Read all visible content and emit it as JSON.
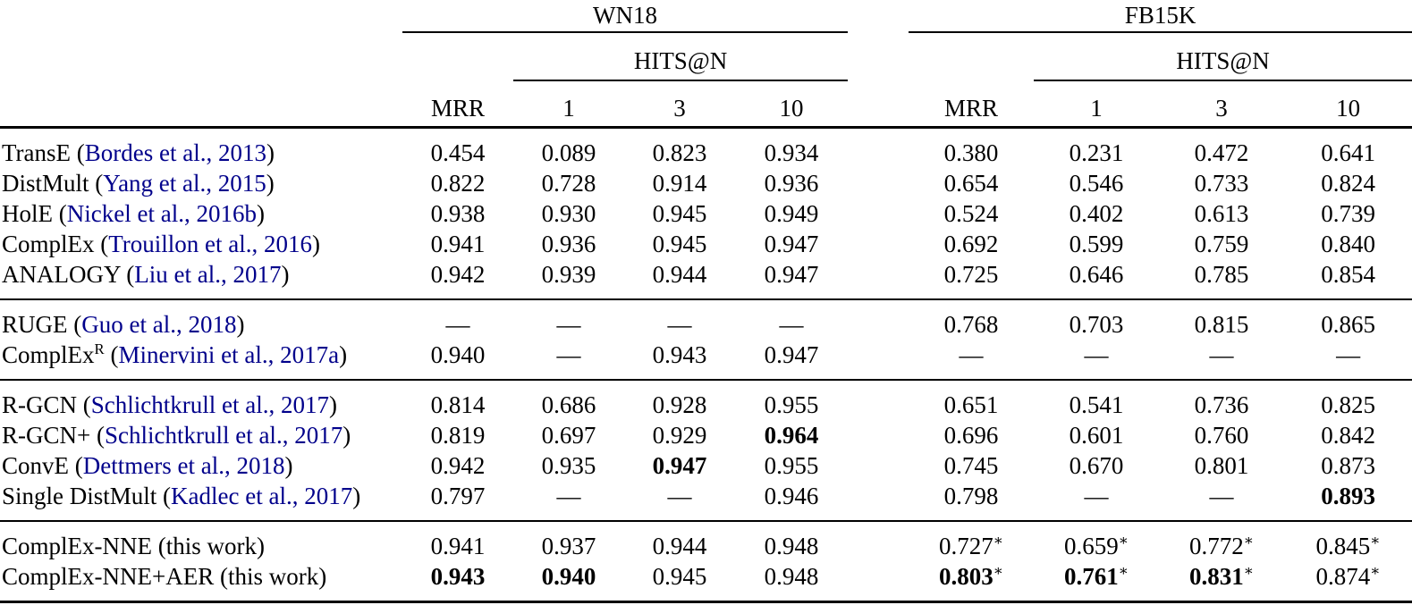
{
  "table": {
    "link_color": "#00008b",
    "dash_symbol": "—",
    "star_symbol": "∗",
    "header": {
      "group_labels": [
        "WN18",
        "FB15K"
      ],
      "hits_label": "HITS@N",
      "metric_labels": [
        "MRR",
        "1",
        "3",
        "10"
      ]
    },
    "groups": [
      {
        "rows": [
          {
            "method": "TransE",
            "sup": "",
            "cite": "Bordes et al., 2013",
            "cite_is_link": true,
            "cells": [
              {
                "v": "0.454"
              },
              {
                "v": "0.089"
              },
              {
                "v": "0.823"
              },
              {
                "v": "0.934"
              },
              {
                "v": "0.380"
              },
              {
                "v": "0.231"
              },
              {
                "v": "0.472"
              },
              {
                "v": "0.641"
              }
            ]
          },
          {
            "method": "DistMult",
            "sup": "",
            "cite": "Yang et al., 2015",
            "cite_is_link": true,
            "cells": [
              {
                "v": "0.822"
              },
              {
                "v": "0.728"
              },
              {
                "v": "0.914"
              },
              {
                "v": "0.936"
              },
              {
                "v": "0.654"
              },
              {
                "v": "0.546"
              },
              {
                "v": "0.733"
              },
              {
                "v": "0.824"
              }
            ]
          },
          {
            "method": "HolE",
            "sup": "",
            "cite": "Nickel et al., 2016b",
            "cite_is_link": true,
            "cells": [
              {
                "v": "0.938"
              },
              {
                "v": "0.930"
              },
              {
                "v": "0.945"
              },
              {
                "v": "0.949"
              },
              {
                "v": "0.524"
              },
              {
                "v": "0.402"
              },
              {
                "v": "0.613"
              },
              {
                "v": "0.739"
              }
            ]
          },
          {
            "method": "ComplEx",
            "sup": "",
            "cite": "Trouillon et al., 2016",
            "cite_is_link": true,
            "cells": [
              {
                "v": "0.941"
              },
              {
                "v": "0.936"
              },
              {
                "v": "0.945"
              },
              {
                "v": "0.947"
              },
              {
                "v": "0.692"
              },
              {
                "v": "0.599"
              },
              {
                "v": "0.759"
              },
              {
                "v": "0.840"
              }
            ]
          },
          {
            "method": "ANALOGY",
            "sup": "",
            "cite": "Liu et al., 2017",
            "cite_is_link": true,
            "cells": [
              {
                "v": "0.942"
              },
              {
                "v": "0.939"
              },
              {
                "v": "0.944"
              },
              {
                "v": "0.947"
              },
              {
                "v": "0.725"
              },
              {
                "v": "0.646"
              },
              {
                "v": "0.785"
              },
              {
                "v": "0.854"
              }
            ]
          }
        ]
      },
      {
        "rows": [
          {
            "method": "RUGE",
            "sup": "",
            "cite": "Guo et al., 2018",
            "cite_is_link": true,
            "cells": [
              {
                "v": "—",
                "dash": true
              },
              {
                "v": "—",
                "dash": true
              },
              {
                "v": "—",
                "dash": true
              },
              {
                "v": "—",
                "dash": true
              },
              {
                "v": "0.768"
              },
              {
                "v": "0.703"
              },
              {
                "v": "0.815"
              },
              {
                "v": "0.865"
              }
            ]
          },
          {
            "method": "ComplEx",
            "sup": "R",
            "cite": "Minervini et al., 2017a",
            "cite_is_link": true,
            "cells": [
              {
                "v": "0.940"
              },
              {
                "v": "—",
                "dash": true
              },
              {
                "v": "0.943"
              },
              {
                "v": "0.947"
              },
              {
                "v": "—",
                "dash": true
              },
              {
                "v": "—",
                "dash": true
              },
              {
                "v": "—",
                "dash": true
              },
              {
                "v": "—",
                "dash": true
              }
            ]
          }
        ]
      },
      {
        "rows": [
          {
            "method": "R-GCN",
            "sup": "",
            "cite": "Schlichtkrull et al., 2017",
            "cite_is_link": true,
            "cells": [
              {
                "v": "0.814"
              },
              {
                "v": "0.686"
              },
              {
                "v": "0.928"
              },
              {
                "v": "0.955"
              },
              {
                "v": "0.651"
              },
              {
                "v": "0.541"
              },
              {
                "v": "0.736"
              },
              {
                "v": "0.825"
              }
            ]
          },
          {
            "method": "R-GCN+",
            "sup": "",
            "cite": "Schlichtkrull et al., 2017",
            "cite_is_link": true,
            "cells": [
              {
                "v": "0.819"
              },
              {
                "v": "0.697"
              },
              {
                "v": "0.929"
              },
              {
                "v": "0.964",
                "bold": true
              },
              {
                "v": "0.696"
              },
              {
                "v": "0.601"
              },
              {
                "v": "0.760"
              },
              {
                "v": "0.842"
              }
            ]
          },
          {
            "method": "ConvE",
            "sup": "",
            "cite": "Dettmers et al., 2018",
            "cite_is_link": true,
            "cells": [
              {
                "v": "0.942"
              },
              {
                "v": "0.935"
              },
              {
                "v": "0.947",
                "bold": true
              },
              {
                "v": "0.955"
              },
              {
                "v": "0.745"
              },
              {
                "v": "0.670"
              },
              {
                "v": "0.801"
              },
              {
                "v": "0.873"
              }
            ]
          },
          {
            "method": "Single DistMult",
            "sup": "",
            "cite": "Kadlec et al., 2017",
            "cite_is_link": true,
            "cells": [
              {
                "v": "0.797"
              },
              {
                "v": "—",
                "dash": true
              },
              {
                "v": "—",
                "dash": true
              },
              {
                "v": "0.946"
              },
              {
                "v": "0.798"
              },
              {
                "v": "—",
                "dash": true
              },
              {
                "v": "—",
                "dash": true
              },
              {
                "v": "0.893",
                "bold": true
              }
            ]
          }
        ]
      },
      {
        "rows": [
          {
            "method": "ComplEx-NNE",
            "sup": "",
            "cite": "this work",
            "cite_is_link": false,
            "cells": [
              {
                "v": "0.941"
              },
              {
                "v": "0.937"
              },
              {
                "v": "0.944"
              },
              {
                "v": "0.948"
              },
              {
                "v": "0.727",
                "star": true
              },
              {
                "v": "0.659",
                "star": true
              },
              {
                "v": "0.772",
                "star": true
              },
              {
                "v": "0.845",
                "star": true
              }
            ]
          },
          {
            "method": "ComplEx-NNE+AER",
            "sup": "",
            "cite": "this work",
            "cite_is_link": false,
            "cells": [
              {
                "v": "0.943",
                "bold": true
              },
              {
                "v": "0.940",
                "bold": true
              },
              {
                "v": "0.945"
              },
              {
                "v": "0.948"
              },
              {
                "v": "0.803",
                "bold": true,
                "star": true
              },
              {
                "v": "0.761",
                "bold": true,
                "star": true
              },
              {
                "v": "0.831",
                "bold": true,
                "star": true
              },
              {
                "v": "0.874",
                "star": true
              }
            ]
          }
        ]
      }
    ]
  }
}
